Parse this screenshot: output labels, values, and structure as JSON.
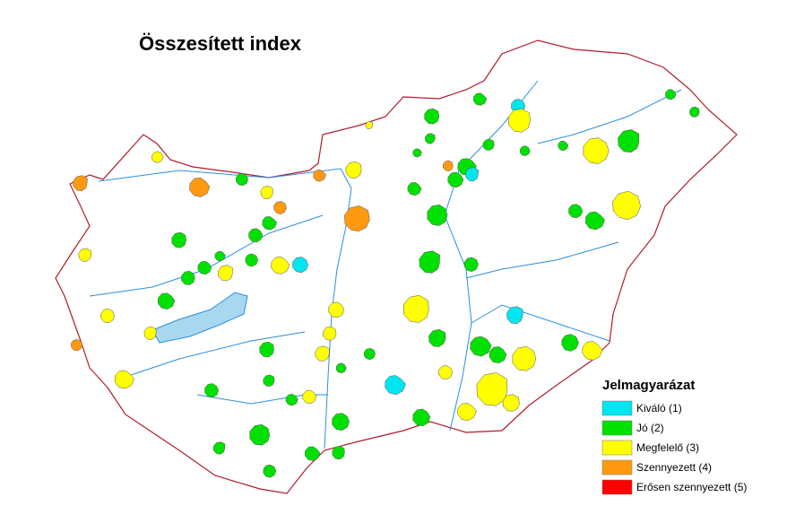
{
  "title": "Összesített index",
  "legend": {
    "title": "Jelmagyarázat",
    "items": [
      {
        "label": "Kiváló (1)",
        "color": "#00e5f0"
      },
      {
        "label": "Jó (2)",
        "color": "#00e000"
      },
      {
        "label": "Megfelelő (3)",
        "color": "#ffff00"
      },
      {
        "label": "Szennyezett (4)",
        "color": "#ff9a10"
      },
      {
        "label": "Erősen szennyezett (5)",
        "color": "#ff0000"
      }
    ]
  }
}
